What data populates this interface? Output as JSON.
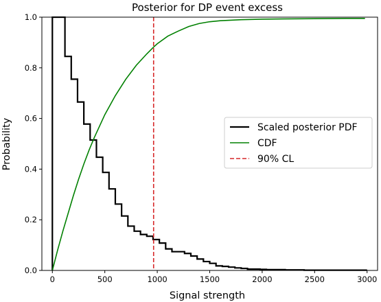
{
  "chart_data": {
    "type": "line",
    "title": "Posterior for DP event excess",
    "xlabel": "Signal strength",
    "ylabel": "Probability",
    "xlim": [
      -100,
      3100
    ],
    "ylim": [
      0,
      1.0
    ],
    "xticks": [
      0,
      500,
      1000,
      1500,
      2000,
      2500,
      3000
    ],
    "yticks": [
      0.0,
      0.2,
      0.4,
      0.6,
      0.8,
      1.0
    ],
    "grid": false,
    "legend_position": "center-right",
    "series": [
      {
        "name": "Scaled posterior PDF",
        "style": "step",
        "color": "#000000",
        "bin_width": 60,
        "bin_edges_start": 0,
        "values": [
          1.0,
          1.0,
          0.845,
          0.755,
          0.665,
          0.578,
          0.515,
          0.447,
          0.387,
          0.322,
          0.262,
          0.215,
          0.175,
          0.155,
          0.142,
          0.135,
          0.122,
          0.108,
          0.085,
          0.074,
          0.074,
          0.067,
          0.057,
          0.045,
          0.035,
          0.028,
          0.018,
          0.016,
          0.013,
          0.01,
          0.008,
          0.005,
          0.005,
          0.004,
          0.003,
          0.003,
          0.003,
          0.002,
          0.002,
          0.002,
          0.001,
          0.001,
          0.001,
          0.001,
          0.001,
          0.001,
          0.001,
          0.001,
          0.001,
          0.001
        ]
      },
      {
        "name": "CDF",
        "style": "line",
        "color": "#008000",
        "x": [
          0,
          50,
          100,
          150,
          200,
          250,
          300,
          350,
          400,
          450,
          500,
          600,
          700,
          800,
          900,
          960,
          1000,
          1100,
          1200,
          1300,
          1400,
          1500,
          1600,
          1700,
          1800,
          2000,
          2200,
          2500,
          2800,
          2980
        ],
        "y": [
          0.0,
          0.08,
          0.155,
          0.225,
          0.295,
          0.36,
          0.42,
          0.475,
          0.525,
          0.57,
          0.615,
          0.69,
          0.755,
          0.81,
          0.855,
          0.88,
          0.895,
          0.925,
          0.945,
          0.963,
          0.975,
          0.982,
          0.986,
          0.988,
          0.99,
          0.992,
          0.993,
          0.994,
          0.995,
          0.995
        ]
      },
      {
        "name": "90% CL",
        "style": "vline",
        "color": "#d62728",
        "x": 965
      }
    ]
  }
}
